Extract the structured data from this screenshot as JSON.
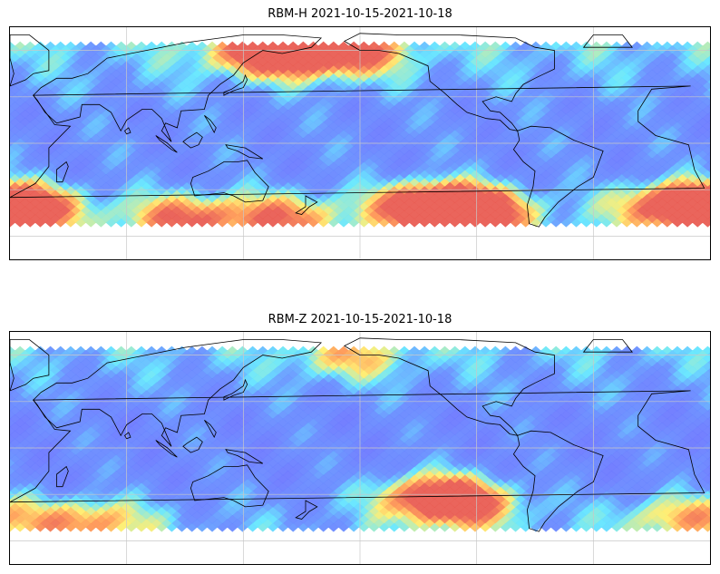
{
  "panels": [
    {
      "id": "rbm-h",
      "title": "RBM-H 2021-10-15-2021-10-18",
      "colormap": "jet",
      "hotspots": [
        {
          "lon": 240,
          "lat": -40,
          "strength": 1.0
        },
        {
          "lon": 255,
          "lat": -45,
          "strength": 0.9
        },
        {
          "lon": 25,
          "lat": -42,
          "strength": 0.85
        },
        {
          "lon": 5,
          "lat": -40,
          "strength": 0.8
        },
        {
          "lon": 155,
          "lat": 58,
          "strength": 0.9
        },
        {
          "lon": 190,
          "lat": 58,
          "strength": 0.75
        },
        {
          "lon": 110,
          "lat": -48,
          "strength": 0.6
        },
        {
          "lon": 160,
          "lat": -48,
          "strength": 0.55
        }
      ],
      "baseline": 0.25
    },
    {
      "id": "rbm-z",
      "title": "RBM-Z 2021-10-15-2021-10-18",
      "colormap": "jet",
      "hotspots": [
        {
          "lon": 240,
          "lat": -30,
          "strength": 0.7
        },
        {
          "lon": 250,
          "lat": -38,
          "strength": 0.65
        },
        {
          "lon": 60,
          "lat": -48,
          "strength": 0.55
        },
        {
          "lon": 5,
          "lat": -45,
          "strength": 0.45
        },
        {
          "lon": 195,
          "lat": 58,
          "strength": 0.35
        }
      ],
      "baseline": 0.22
    }
  ],
  "colors": {
    "ocean_low": "#6a6cff",
    "ocean_mid": "#5fe6ff",
    "mid_high": "#ffee6a",
    "high": "#e8584e",
    "coast": "#000000",
    "grid": "#c8c8c8"
  }
}
